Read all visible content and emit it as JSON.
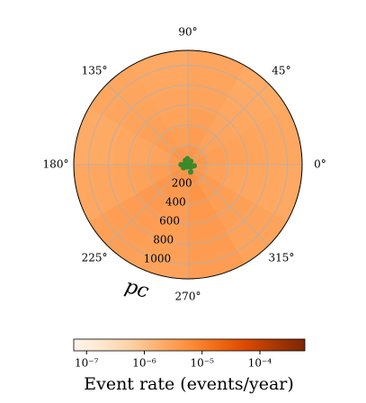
{
  "chart_data": {
    "type": "polar-heatmap",
    "theta_edges": [
      0,
      30,
      60,
      90,
      120,
      150,
      180,
      210,
      240,
      270,
      300,
      330,
      360
    ],
    "r_edges": [
      0,
      190,
      380,
      570,
      760,
      950,
      1150
    ],
    "values": [
      [
        4.1e-06,
        3.6e-06,
        4.4e-06,
        3.9e-06,
        4.6e-06,
        3.8e-06,
        4.2e-06,
        5.1e-06,
        4.8e-06,
        5.6e-06,
        4.5e-06,
        3.7e-06
      ],
      [
        3.2e-06,
        2.9e-06,
        3.5e-06,
        3.1e-06,
        3.4e-06,
        2.8e-06,
        3.3e-06,
        4.2e-06,
        3.9e-06,
        4.6e-06,
        3.6e-06,
        3e-06
      ],
      [
        2.9e-06,
        2.6e-06,
        3.1e-06,
        2.8e-06,
        3e-06,
        2.5e-06,
        2.9e-06,
        3.8e-06,
        3.5e-06,
        4.1e-06,
        3.3e-06,
        2.7e-06
      ],
      [
        2.7e-06,
        2.4e-06,
        2.8e-06,
        2.6e-06,
        2.8e-06,
        2.4e-06,
        2.7e-06,
        3.5e-06,
        3.3e-06,
        3.8e-06,
        3.1e-06,
        2.5e-06
      ],
      [
        2.5e-06,
        2.3e-06,
        2.7e-06,
        2.4e-06,
        2.6e-06,
        2.2e-06,
        2.5e-06,
        3.3e-06,
        3.1e-06,
        3.6e-06,
        2.9e-06,
        2.4e-06
      ],
      [
        2.4e-06,
        2.2e-06,
        2.6e-06,
        2.3e-06,
        2.5e-06,
        2.1e-06,
        2.4e-06,
        3.1e-06,
        2.9e-06,
        3.4e-06,
        2.8e-06,
        2.3e-06
      ]
    ],
    "points": {
      "color": "#3a8a2a",
      "r": [
        20,
        45,
        60,
        35,
        70,
        55,
        25,
        80,
        40,
        65,
        50,
        30
      ],
      "theta": [
        10,
        50,
        95,
        140,
        180,
        215,
        250,
        290,
        320,
        350,
        120,
        200
      ]
    },
    "rlim": [
      0,
      1150
    ],
    "rticks": [
      200,
      400,
      600,
      800,
      1000
    ],
    "r_label": "pc",
    "thetaticks": [
      {
        "value": 0,
        "label": "0°"
      },
      {
        "value": 45,
        "label": "45°"
      },
      {
        "value": 90,
        "label": "90°"
      },
      {
        "value": 135,
        "label": "135°"
      },
      {
        "value": 180,
        "label": "180°"
      },
      {
        "value": 225,
        "label": "225°"
      },
      {
        "value": 270,
        "label": "270°"
      },
      {
        "value": 315,
        "label": "315°"
      }
    ],
    "grid": true,
    "colorbar": {
      "label": "Event rate (events/year)",
      "log": true,
      "clim": [
        6e-08,
        0.0006
      ],
      "ticks": [
        {
          "value": 1e-07,
          "label": "10⁻⁷"
        },
        {
          "value": 1e-06,
          "label": "10⁻⁶"
        },
        {
          "value": 1e-05,
          "label": "10⁻⁵"
        },
        {
          "value": 0.0001,
          "label": "10⁻⁴"
        }
      ]
    }
  }
}
